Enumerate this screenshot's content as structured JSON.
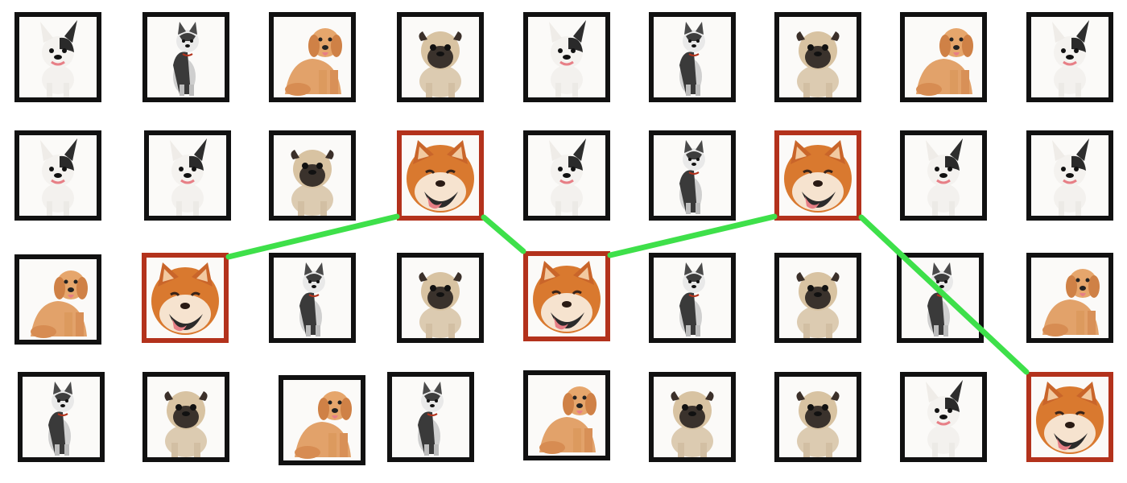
{
  "game": {
    "colors": {
      "tile_border": "#111111",
      "matched_border": "#b3321c",
      "connector": "#3ee04a",
      "tile_background": "#fbfaf8"
    },
    "grid": [
      [
        "french-bulldog",
        "husky",
        "golden-retriever",
        "pug",
        "french-bulldog",
        "husky",
        "pug",
        "golden-retriever",
        "french-bulldog"
      ],
      [
        "french-bulldog",
        "french-bulldog",
        "pug",
        "shiba-inu",
        "french-bulldog",
        "husky",
        "shiba-inu",
        "french-bulldog",
        "french-bulldog"
      ],
      [
        "golden-retriever",
        "shiba-inu",
        "husky",
        "pug",
        "shiba-inu",
        "husky",
        "pug",
        "husky",
        "golden-retriever"
      ],
      [
        "husky",
        "pug",
        "golden-retriever",
        "husky",
        "golden-retriever",
        "pug",
        "pug",
        "french-bulldog",
        "shiba-inu"
      ]
    ],
    "matched_tiles": [
      [
        2,
        1
      ],
      [
        1,
        3
      ],
      [
        2,
        4
      ],
      [
        1,
        6
      ],
      [
        3,
        8
      ]
    ],
    "connection_path": [
      [
        2,
        1
      ],
      [
        1,
        3
      ],
      [
        2,
        4
      ],
      [
        1,
        6
      ],
      [
        3,
        8
      ]
    ]
  }
}
